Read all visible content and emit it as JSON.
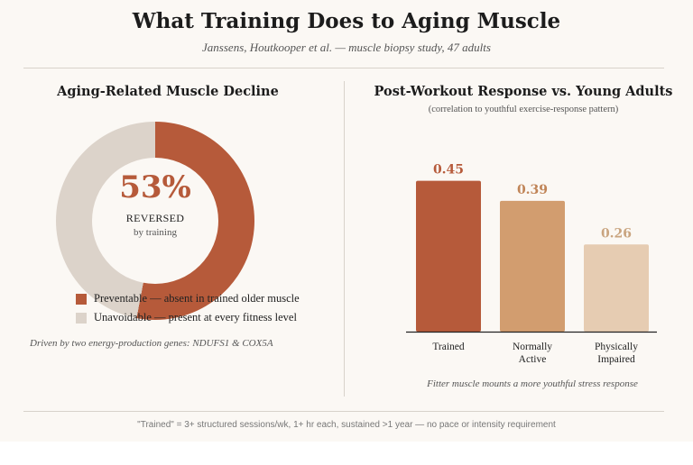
{
  "title": "What Training Does to Aging Muscle",
  "subtitle": "Janssens, Houtkooper et al. — muscle biopsy study, 47 adults",
  "left_panel": {
    "title": "Aging-Related Muscle Decline",
    "center_value": "53%",
    "center_label": "REVERSED",
    "center_sub": "by training",
    "legend": [
      {
        "label": "Preventable — absent in trained older muscle",
        "color": "#b65a3a"
      },
      {
        "label": "Unavoidable — present at every fitness level",
        "color": "#dcd3ca"
      }
    ],
    "note": "Driven by two energy-production genes: NDUFS1 & COX5A"
  },
  "right_panel": {
    "title": "Post-Workout Response vs. Young Adults",
    "subtitle": "(correlation to youthful exercise-response pattern)",
    "caption": "Fitter muscle mounts a more youthful stress response"
  },
  "footnote": "\"Trained\" = 3+ structured sessions/wk, 1+ hr each, sustained >1 year — no pace or intensity requirement",
  "chart_data": [
    {
      "type": "pie",
      "title": "Aging-Related Muscle Decline",
      "labels": [
        "Preventable — absent in trained older muscle",
        "Unavoidable — present at every fitness level"
      ],
      "values": [
        53,
        47
      ],
      "colors": [
        "#b65a3a",
        "#dcd3ca"
      ]
    },
    {
      "type": "bar",
      "title": "Post-Workout Response vs. Young Adults",
      "categories": [
        "Trained",
        "Normally Active",
        "Physically Impaired"
      ],
      "category_lines": [
        [
          "Trained"
        ],
        [
          "Normally",
          "Active"
        ],
        [
          "Physically",
          "Impaired"
        ]
      ],
      "values": [
        0.45,
        0.39,
        0.26
      ],
      "value_labels": [
        "0.45",
        "0.39",
        "0.26"
      ],
      "colors": [
        "#b65a3a",
        "#d29d6f",
        "#e6ccb2"
      ],
      "label_colors": [
        "#b65a3a",
        "#c08457",
        "#c9a47f"
      ],
      "ylim": [
        0,
        0.5
      ]
    }
  ]
}
